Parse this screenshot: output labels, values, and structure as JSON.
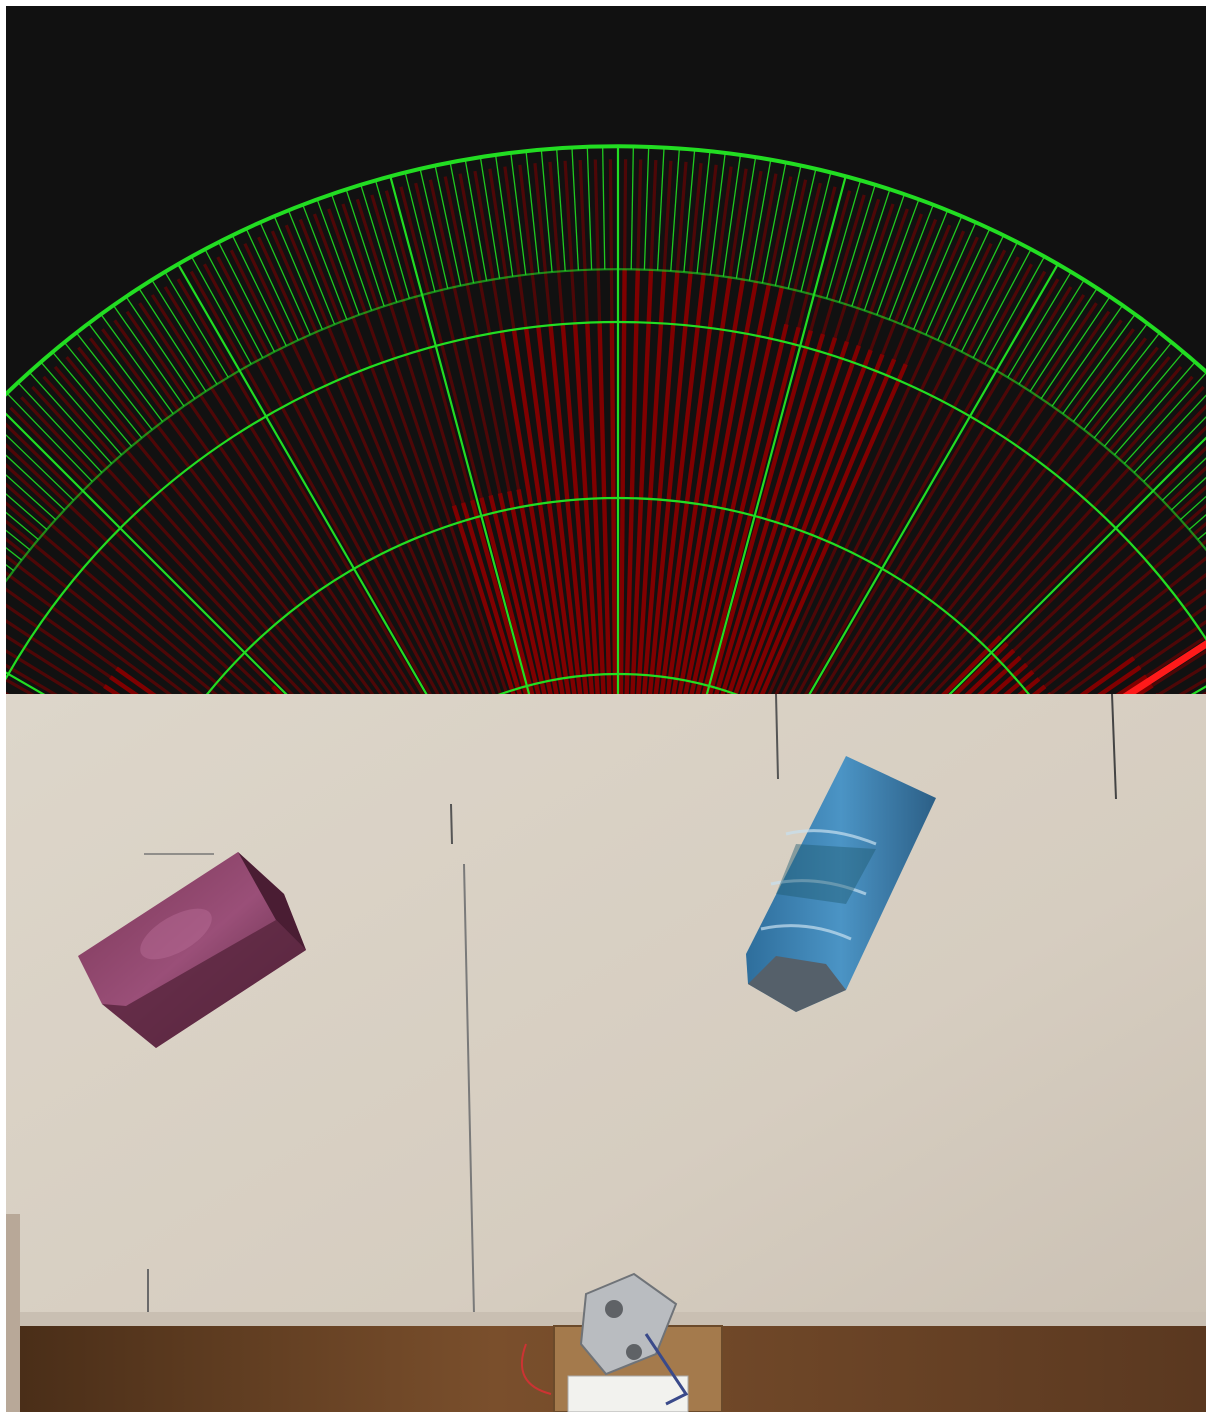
{
  "radar": {
    "colors": {
      "background": "#111111",
      "grid": "#22dd22",
      "echo": "#800000",
      "sweep": "#ff1a1a",
      "sweep_grid": "#66ff44"
    },
    "sweep_angle_deg": 33,
    "rays": {
      "count": 180,
      "field_of_view_deg": 180,
      "max_range_fraction": 1.0,
      "near_range_fraction": 0.4,
      "segments": [
        {
          "from_deg": 0,
          "to_deg": 27,
          "range_fraction": 0.93
        },
        {
          "from_deg": 27,
          "to_deg": 36,
          "range_fraction": 0.7
        },
        {
          "from_deg": 36,
          "to_deg": 45,
          "range_fraction": 0.55
        },
        {
          "from_deg": 45,
          "to_deg": 56,
          "range_fraction": 0.38
        },
        {
          "from_deg": 56,
          "to_deg": 72,
          "range_fraction": 0.1
        },
        {
          "from_deg": 72,
          "to_deg": 80,
          "range_fraction": 0.62
        },
        {
          "from_deg": 80,
          "to_deg": 90,
          "range_fraction": 0.8
        },
        {
          "from_deg": 90,
          "to_deg": 103,
          "range_fraction": 0.86
        },
        {
          "from_deg": 103,
          "to_deg": 114,
          "range_fraction": 0.82
        },
        {
          "from_deg": 114,
          "to_deg": 124,
          "range_fraction": 0.3
        },
        {
          "from_deg": 124,
          "to_deg": 134,
          "range_fraction": 0.34
        },
        {
          "from_deg": 134,
          "to_deg": 144,
          "range_fraction": 0.62
        },
        {
          "from_deg": 144,
          "to_deg": 156,
          "range_fraction": 0.72
        },
        {
          "from_deg": 156,
          "to_deg": 167,
          "range_fraction": 0.76
        },
        {
          "from_deg": 167,
          "to_deg": 180,
          "range_fraction": 0.94
        }
      ]
    },
    "range_rings": 5,
    "spokes_deg": [
      15,
      30,
      45,
      60,
      75,
      90,
      105,
      120,
      135,
      150,
      165
    ]
  },
  "photo": {
    "colors": {
      "paper": "#dcd4c8",
      "paper_shadow": "#cbc2b6",
      "wood": "#6b4526",
      "purple_box": "#6c2c4a",
      "blue_box": "#3b7fb3",
      "board": "#b58a5a"
    }
  }
}
